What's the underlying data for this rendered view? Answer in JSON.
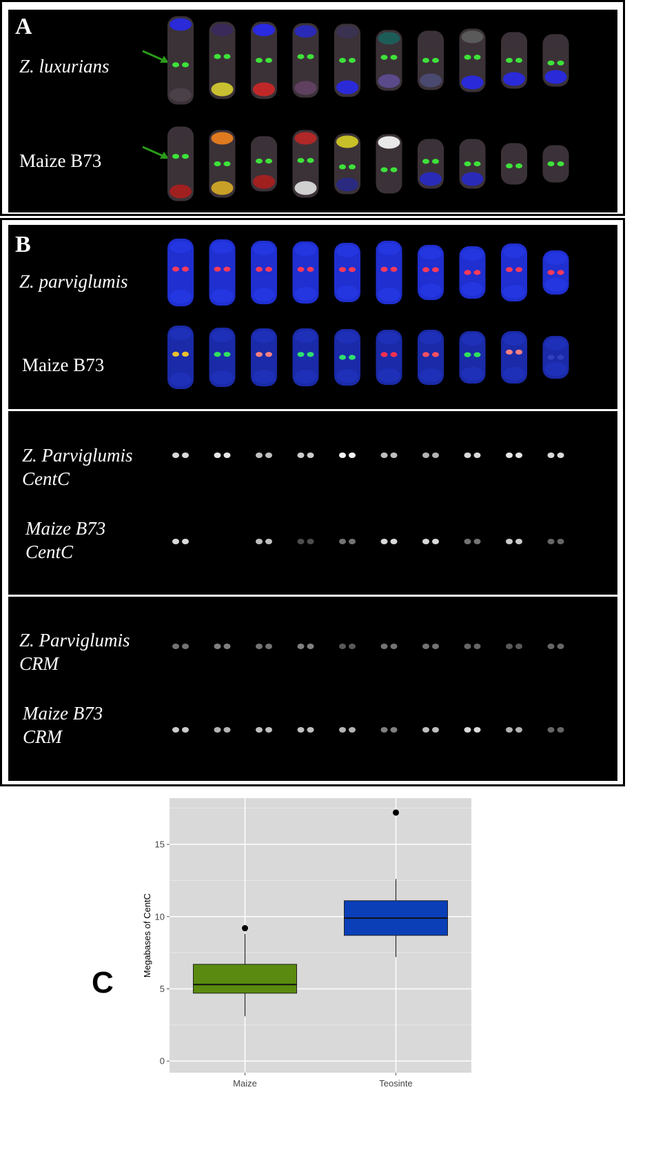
{
  "panel_a": {
    "letter": "A",
    "row1_label": "Z. luxurians",
    "row2_label": "Maize B73"
  },
  "panel_b": {
    "letter": "B",
    "row1_label": "Z. parviglumis",
    "row2_label": "Maize B73",
    "centc_row1_label_line1": "Z. Parviglumis",
    "centc_row1_label_line2": "CentC",
    "centc_row2_label_line1": "Maize B73",
    "centc_row2_label_line2": "CentC",
    "crm_row1_label_line1": "Z. Parviglumis",
    "crm_row1_label_line2": "CRM",
    "crm_row2_label_line1": "Maize B73",
    "crm_row2_label_line2": "CRM"
  },
  "panel_c": {
    "letter": "C"
  },
  "colors": {
    "maize_box": "#5a8a0f",
    "teosinte_box": "#0a3fb8",
    "plot_bg": "#d9d9d9",
    "grid": "#ffffff"
  },
  "chart_data": {
    "type": "box",
    "categories": [
      "Maize",
      "Teosinte"
    ],
    "ylabel": "Megabases of CentC",
    "xlabel": "",
    "title": "",
    "yticks": [
      0,
      5,
      10,
      15
    ],
    "ylim": [
      -0.8,
      18.2
    ],
    "boxes": [
      {
        "category": "Maize",
        "lower_whisker": 3.1,
        "q1": 4.7,
        "median": 5.3,
        "q3": 6.7,
        "upper_whisker": 8.8,
        "outliers": [
          9.2
        ]
      },
      {
        "category": "Teosinte",
        "lower_whisker": 7.2,
        "q1": 8.7,
        "median": 9.9,
        "q3": 11.1,
        "upper_whisker": 12.6,
        "outliers": [
          17.2
        ]
      }
    ],
    "grid": true,
    "legend": "none"
  }
}
